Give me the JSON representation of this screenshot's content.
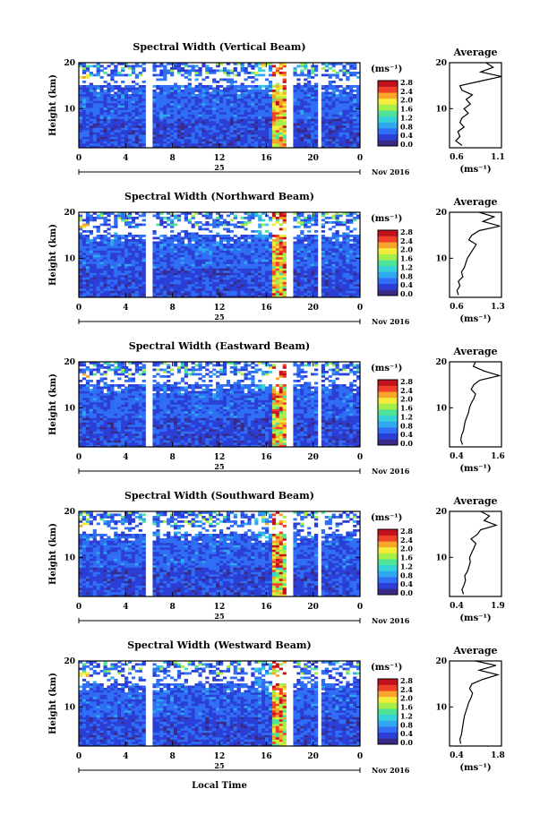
{
  "figure": {
    "xlabel_bottom": "Local Time",
    "date_label": "Nov 2016",
    "day_label": "25",
    "colorbar_unit": "(ms⁻¹)",
    "colorbar_ticks": [
      "0.0",
      "0.4",
      "0.8",
      "1.2",
      "1.6",
      "2.0",
      "2.4",
      "2.8"
    ],
    "average_title": "Average",
    "average_unit": "(ms⁻¹)",
    "height_axis_label": "Height (km)",
    "height_ticks": [
      "10",
      "20"
    ],
    "time_ticks": [
      "0",
      "4",
      "8",
      "12",
      "16",
      "20",
      "0"
    ]
  },
  "colors": {
    "scale": [
      "#3a2a88",
      "#2b3fd6",
      "#2f6ef5",
      "#2fa8f0",
      "#35d2d8",
      "#4fe39a",
      "#a6ef4a",
      "#f3ec3a",
      "#f7a52b",
      "#f0402a",
      "#c2121e"
    ]
  },
  "chart_data": [
    {
      "type": "heatmap",
      "title": "Spectral Width (Vertical Beam)",
      "xlabel": "",
      "ylabel": "Height (km)",
      "xlim": [
        0,
        24
      ],
      "ylim": [
        1.5,
        20
      ],
      "value_range": [
        0.0,
        3.0
      ],
      "profile": {
        "title": "Average",
        "xlim": [
          0.6,
          1.1
        ],
        "xticks": [
          "0.6",
          "1.1"
        ],
        "height": [
          2,
          3,
          4,
          5,
          6,
          7,
          8,
          9,
          10,
          11,
          12,
          13,
          14,
          15,
          16,
          17,
          18,
          19,
          20
        ],
        "values": [
          0.72,
          0.66,
          0.7,
          0.68,
          0.74,
          0.7,
          0.72,
          0.78,
          0.74,
          0.8,
          0.76,
          0.82,
          0.72,
          0.7,
          0.9,
          1.1,
          0.9,
          1.02,
          0.95
        ]
      }
    },
    {
      "type": "heatmap",
      "title": "Spectral Width (Northward Beam)",
      "xlabel": "",
      "ylabel": "Height (km)",
      "xlim": [
        0,
        24
      ],
      "ylim": [
        1.5,
        20
      ],
      "value_range": [
        0.0,
        3.0
      ],
      "profile": {
        "title": "Average",
        "xlim": [
          0.6,
          1.3
        ],
        "xticks": [
          "0.6",
          "1.3"
        ],
        "height": [
          2,
          3,
          4,
          5,
          6,
          7,
          8,
          9,
          10,
          11,
          12,
          13,
          14,
          15,
          16,
          17,
          18,
          19,
          20
        ],
        "values": [
          0.72,
          0.7,
          0.74,
          0.72,
          0.78,
          0.76,
          0.8,
          0.82,
          0.84,
          0.88,
          0.92,
          0.96,
          0.86,
          0.9,
          1.0,
          1.28,
          1.05,
          1.2,
          1.0
        ]
      }
    },
    {
      "type": "heatmap",
      "title": "Spectral Width (Eastward Beam)",
      "xlabel": "",
      "ylabel": "Height (km)",
      "xlim": [
        0,
        24
      ],
      "ylim": [
        1.5,
        20
      ],
      "value_range": [
        0.0,
        3.0
      ],
      "profile": {
        "title": "Average",
        "xlim": [
          0.4,
          1.6
        ],
        "xticks": [
          "0.4",
          "1.6"
        ],
        "height": [
          2,
          3,
          4,
          5,
          6,
          7,
          8,
          9,
          10,
          11,
          12,
          13,
          14,
          15,
          16,
          17,
          18,
          19,
          20
        ],
        "values": [
          0.7,
          0.66,
          0.68,
          0.72,
          0.74,
          0.76,
          0.8,
          0.84,
          0.86,
          0.9,
          0.96,
          1.0,
          0.9,
          0.96,
          1.1,
          1.55,
          1.2,
          0.95,
          1.0
        ]
      }
    },
    {
      "type": "heatmap",
      "title": "Spectral Width (Southward Beam)",
      "xlabel": "",
      "ylabel": "Height (km)",
      "xlim": [
        0,
        24
      ],
      "ylim": [
        1.5,
        20
      ],
      "value_range": [
        0.0,
        3.0
      ],
      "profile": {
        "title": "Average",
        "xlim": [
          0.4,
          1.9
        ],
        "xticks": [
          "0.4",
          "1.9"
        ],
        "height": [
          2,
          3,
          4,
          5,
          6,
          7,
          8,
          9,
          10,
          11,
          12,
          13,
          14,
          15,
          16,
          17,
          18,
          19,
          20
        ],
        "values": [
          0.8,
          0.76,
          0.82,
          0.86,
          0.84,
          0.92,
          0.96,
          1.0,
          0.98,
          1.04,
          1.1,
          1.16,
          1.02,
          1.2,
          1.3,
          1.75,
          1.4,
          1.55,
          1.3
        ]
      }
    },
    {
      "type": "heatmap",
      "title": "Spectral Width (Westward Beam)",
      "xlabel": "Local Time",
      "ylabel": "Height (km)",
      "xlim": [
        0,
        24
      ],
      "ylim": [
        1.5,
        20
      ],
      "value_range": [
        0.0,
        3.0
      ],
      "profile": {
        "title": "Average",
        "xlim": [
          0.4,
          1.8
        ],
        "xticks": [
          "0.4",
          "1.8"
        ],
        "height": [
          2,
          3,
          4,
          5,
          6,
          7,
          8,
          9,
          10,
          11,
          12,
          13,
          14,
          15,
          16,
          17,
          18,
          19,
          20
        ],
        "values": [
          0.7,
          0.68,
          0.72,
          0.74,
          0.76,
          0.78,
          0.8,
          0.84,
          0.88,
          0.92,
          0.98,
          1.02,
          0.94,
          1.0,
          1.3,
          1.7,
          1.2,
          1.65,
          1.1
        ]
      }
    }
  ]
}
